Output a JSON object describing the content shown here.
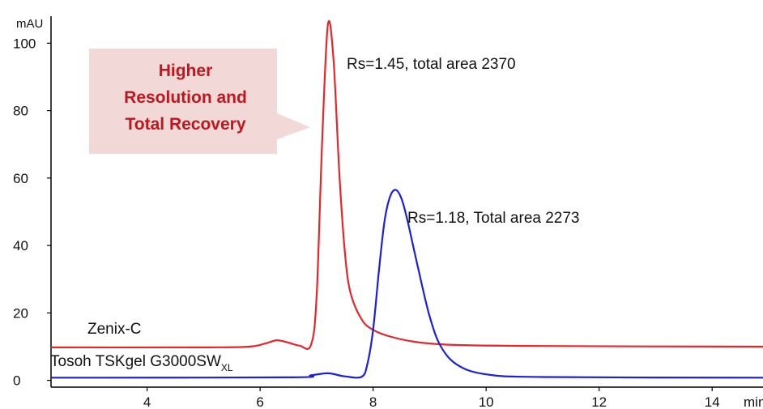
{
  "chart_data": {
    "type": "line",
    "title": "",
    "xlabel": "min",
    "ylabel": "mAU",
    "xlim": [
      2.3,
      14.9
    ],
    "ylim": [
      -2,
      108
    ],
    "x_ticks": [
      4,
      6,
      8,
      10,
      12,
      14
    ],
    "y_ticks": [
      0,
      20,
      40,
      60,
      80,
      100
    ],
    "grid": false,
    "series": [
      {
        "name": "Zenix-C",
        "color": "#e8262a",
        "points": [
          [
            2.3,
            9.8
          ],
          [
            5.0,
            9.8
          ],
          [
            5.8,
            10.0
          ],
          [
            6.1,
            11.0
          ],
          [
            6.3,
            11.9
          ],
          [
            6.5,
            11.2
          ],
          [
            6.7,
            10.3
          ],
          [
            6.9,
            10.5
          ],
          [
            7.0,
            25
          ],
          [
            7.1,
            72
          ],
          [
            7.2,
            105.5
          ],
          [
            7.3,
            95
          ],
          [
            7.4,
            62
          ],
          [
            7.5,
            38
          ],
          [
            7.6,
            26
          ],
          [
            7.8,
            18
          ],
          [
            8.0,
            15
          ],
          [
            8.3,
            13
          ],
          [
            8.8,
            11.3
          ],
          [
            9.5,
            10.5
          ],
          [
            11.0,
            10.2
          ],
          [
            14.9,
            10.0
          ]
        ]
      },
      {
        "name": "Tosoh TSKgel G3000SW",
        "name_subscript": "XL",
        "color": "#1c1ee0",
        "points": [
          [
            2.3,
            0.8
          ],
          [
            6.5,
            0.9
          ],
          [
            6.9,
            1.5
          ],
          [
            7.2,
            2.1
          ],
          [
            7.5,
            1.2
          ],
          [
            7.8,
            1.1
          ],
          [
            7.9,
            5
          ],
          [
            8.0,
            15
          ],
          [
            8.1,
            32
          ],
          [
            8.2,
            47
          ],
          [
            8.3,
            54.5
          ],
          [
            8.4,
            56.5
          ],
          [
            8.5,
            54
          ],
          [
            8.6,
            48
          ],
          [
            8.8,
            33
          ],
          [
            9.0,
            19
          ],
          [
            9.2,
            10
          ],
          [
            9.5,
            4.5
          ],
          [
            10.0,
            1.8
          ],
          [
            11.0,
            1.0
          ],
          [
            14.9,
            0.8
          ]
        ]
      }
    ],
    "annotations": [
      {
        "text": "Rs=1.45, total area 2370"
      },
      {
        "text": "Rs=1.18, Total area 2273"
      }
    ],
    "callout": {
      "lines": [
        "Higher",
        "Resolution and",
        "Total Recovery"
      ],
      "text_color": "#c0171d",
      "fill_color": "#f2d9d8"
    }
  }
}
